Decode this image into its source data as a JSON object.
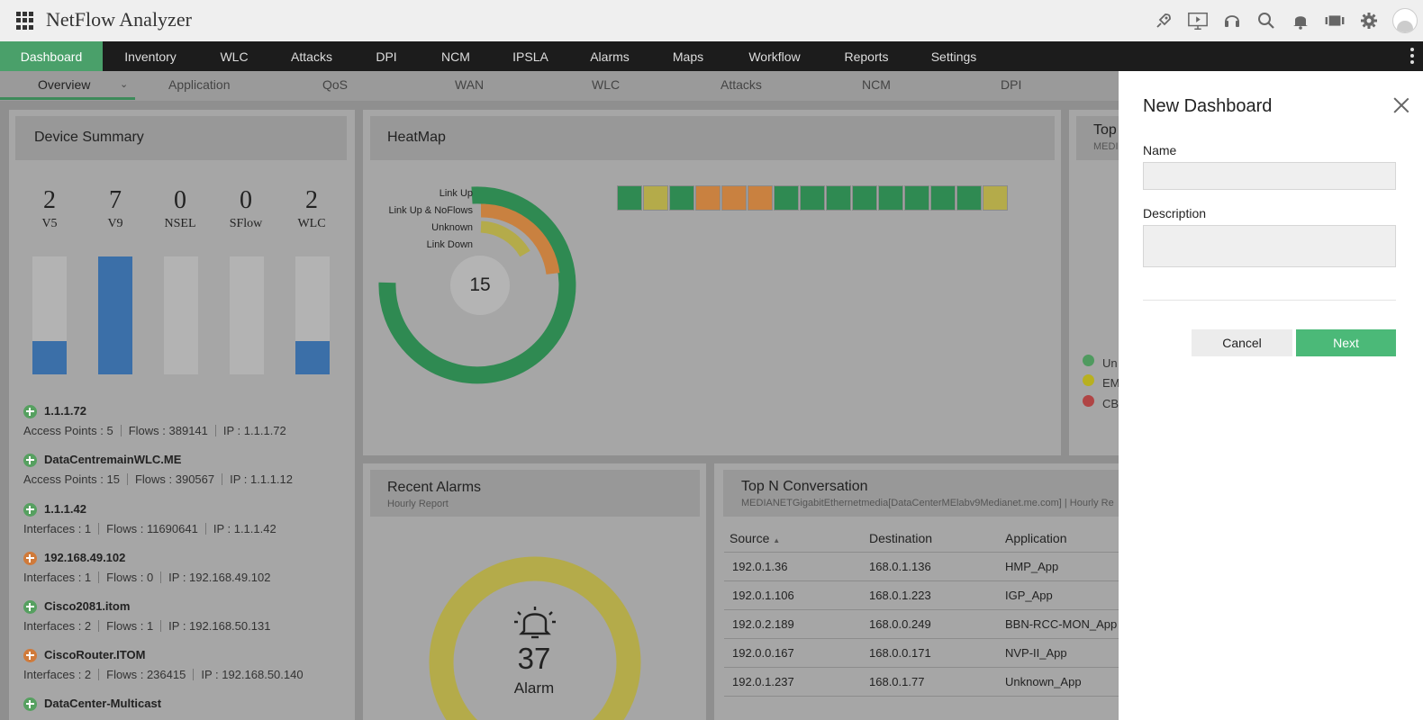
{
  "app": {
    "title": "NetFlow Analyzer"
  },
  "top_icons": [
    "rocket-icon",
    "presentation-icon",
    "headset-icon",
    "search-icon",
    "bell-icon",
    "film-icon",
    "gear-icon",
    "user-avatar"
  ],
  "main_nav": {
    "items": [
      "Dashboard",
      "Inventory",
      "WLC",
      "Attacks",
      "DPI",
      "NCM",
      "IPSLA",
      "Alarms",
      "Maps",
      "Workflow",
      "Reports",
      "Settings"
    ],
    "active": "Dashboard"
  },
  "sub_nav": {
    "items": [
      "Overview",
      "Application",
      "QoS",
      "WAN",
      "WLC",
      "Attacks",
      "NCM",
      "DPI"
    ],
    "active": "Overview"
  },
  "device_summary": {
    "title": "Device Summary",
    "stats": [
      {
        "value": "2",
        "label": "V5",
        "fill": 0.28
      },
      {
        "value": "7",
        "label": "V9",
        "fill": 1.0
      },
      {
        "value": "0",
        "label": "NSEL",
        "fill": 0
      },
      {
        "value": "0",
        "label": "SFlow",
        "fill": 0
      },
      {
        "value": "2",
        "label": "WLC",
        "fill": 0.28
      }
    ],
    "devices": [
      {
        "name": "1.1.1.72",
        "status": "green",
        "meta": [
          "Access Points : 5",
          "Flows : 389141",
          "IP : 1.1.1.72"
        ]
      },
      {
        "name": "DataCentremainWLC.ME",
        "status": "green",
        "meta": [
          "Access Points : 15",
          "Flows : 390567",
          "IP : 1.1.1.12"
        ]
      },
      {
        "name": "1.1.1.42",
        "status": "green",
        "meta": [
          "Interfaces : 1",
          "Flows : 11690641",
          "IP : 1.1.1.42"
        ]
      },
      {
        "name": "192.168.49.102",
        "status": "orange",
        "meta": [
          "Interfaces : 1",
          "Flows : 0",
          "IP : 192.168.49.102"
        ]
      },
      {
        "name": "Cisco2081.itom",
        "status": "green",
        "meta": [
          "Interfaces : 2",
          "Flows : 1",
          "IP : 192.168.50.131"
        ]
      },
      {
        "name": "CiscoRouter.ITOM",
        "status": "orange",
        "meta": [
          "Interfaces : 2",
          "Flows : 236415",
          "IP : 192.168.50.140"
        ]
      },
      {
        "name": "DataCenter-Multicast",
        "status": "green",
        "meta": []
      }
    ]
  },
  "heatmap": {
    "title": "HeatMap",
    "total": "15",
    "legend": [
      "Link Up",
      "Link Up & NoFlows",
      "Unknown",
      "Link Down"
    ],
    "colors": {
      "up": "#2f8a52",
      "noflows": "#c98140",
      "unknown": "#b4ab4a",
      "down": "#b04040"
    },
    "cells": [
      "up",
      "unknown",
      "up",
      "noflows",
      "noflows",
      "noflows",
      "up",
      "up",
      "up",
      "up",
      "up",
      "up",
      "up",
      "up",
      "unknown"
    ]
  },
  "top_panel": {
    "title": "Top",
    "subtitle": "MEDI",
    "legend": [
      {
        "label": "Un",
        "color": "#4f9a5f"
      },
      {
        "label": "EM",
        "color": "#b8b020"
      },
      {
        "label": "CB",
        "color": "#b04545"
      }
    ]
  },
  "recent_alarms": {
    "title": "Recent Alarms",
    "subtitle": "Hourly Report",
    "count": "37",
    "label": "Alarm",
    "ring_color": "#b4ab4a"
  },
  "top_n": {
    "title": "Top N Conversation",
    "subtitle": "MEDIANETGigabitEthernetmedia[DataCenterMElabv9Medianet.me.com] | Hourly Re",
    "columns": [
      "Source",
      "Destination",
      "Application"
    ],
    "rows": [
      [
        "192.0.1.36",
        "168.0.1.136",
        "HMP_App"
      ],
      [
        "192.0.1.106",
        "168.0.1.223",
        "IGP_App"
      ],
      [
        "192.0.2.189",
        "168.0.0.249",
        "BBN-RCC-MON_App"
      ],
      [
        "192.0.0.167",
        "168.0.0.171",
        "NVP-II_App"
      ],
      [
        "192.0.1.237",
        "168.0.1.77",
        "Unknown_App"
      ]
    ]
  },
  "new_dashboard": {
    "title": "New Dashboard",
    "name_label": "Name",
    "name_value": "",
    "description_label": "Description",
    "description_value": "",
    "cancel_label": "Cancel",
    "next_label": "Next"
  }
}
